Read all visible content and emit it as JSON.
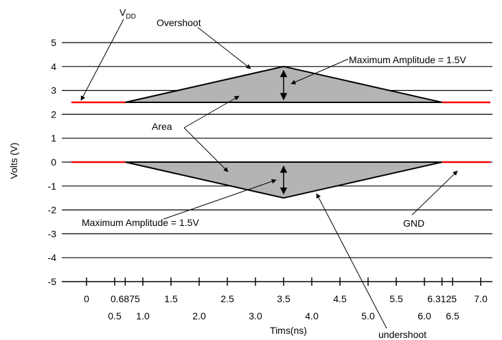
{
  "chart_data": {
    "type": "diagram",
    "ylabel": "Volts (V)",
    "xlabel": "Tims(ns)",
    "ylim": [
      -5,
      5
    ],
    "y_ticks": [
      5,
      4,
      3,
      2,
      1,
      0,
      -1,
      -2,
      -3,
      -4,
      -5
    ],
    "x_ticks_row1": [
      "0",
      "0.6875",
      "1.5",
      "2.5",
      "3.5",
      "4.5",
      "5.5",
      "6.3125",
      "7.0"
    ],
    "x_ticks_row2": [
      "0.5",
      "1.0",
      "2.0",
      "3.0",
      "4.0",
      "5.0",
      "6.0",
      "6.5"
    ],
    "vdd_level": 2.5,
    "gnd_level": 0,
    "overshoot_peak": 4.0,
    "undershoot_peak": -1.5,
    "pulse_start_ns": 0.6875,
    "pulse_peak_ns": 3.5,
    "pulse_end_ns": 6.3125,
    "colors": {
      "supply": "#ff0000",
      "fill": "#b4b4b4",
      "stroke": "#000000"
    }
  },
  "labels": {
    "vdd_main": "V",
    "vdd_sub": "DD",
    "overshoot": "Overshoot",
    "max_amp_top": "Maximum Amplitude = 1.5V",
    "area": "Area",
    "max_amp_bottom": "Maximum Amplitude = 1.5V",
    "gnd": "GND",
    "undershoot": "undershoot"
  }
}
